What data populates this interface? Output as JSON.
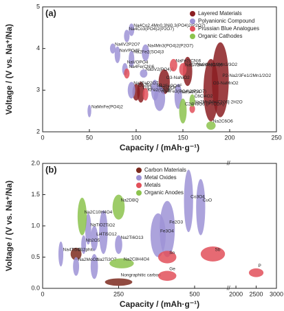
{
  "chart_data": [
    {
      "type": "scatter",
      "panel": "(a)",
      "xlabel": "Capacity / (mAh·g⁻¹)",
      "ylabel": "Voltage / (V vs. Na⁺/Na)",
      "xlim": [
        0,
        250
      ],
      "ylim": [
        2,
        5
      ],
      "xticks": [
        0,
        50,
        100,
        150,
        200,
        250
      ],
      "yticks": [
        2,
        3,
        4,
        5
      ],
      "legend": "upper right",
      "series": [
        {
          "name": "Layered Materials",
          "color": "#8b1e22",
          "labels": [
            "P2-Na2/3Fe1/2Mn1/2O2",
            "O3-NaMnO2",
            "O3-NaNiO2",
            "P2-Na2/3Ni1/3Mn2/3O2",
            "O3-Na3Ni2SbO6",
            "O3-NaCrO2"
          ],
          "x": [
            190,
            180,
            130,
            155,
            105,
            100
          ],
          "y": [
            3.25,
            3.0,
            3.2,
            3.45,
            2.95,
            2.95
          ],
          "dx": [
            9,
            8,
            6,
            5,
            4,
            4
          ],
          "dy": [
            0.9,
            0.75,
            0.3,
            0.35,
            0.25,
            0.2
          ]
        },
        {
          "name": "Polyanionic Compound",
          "color": "#9d93d6",
          "labels": [
            "Na4Co2.4Mn0.3Ni0.3(PO4)2(P2O7)",
            "Na4Co3(PO4)2(P2O7)",
            "Na4V2P2O7",
            "Na4Mn3(PO4)2(P2O7)",
            "NaVPO4F",
            "Na2Fe2(SO4)3",
            "Na3V2(PO4)3",
            "NaVOPO4",
            "Na2FePO4F",
            "Na2FeP2O7",
            "NaFePO4",
            "Na4Fe3(PO4)2(P2O7)",
            "NaMnFe(PO4)2"
          ],
          "x": [
            95,
            90,
            75,
            110,
            80,
            95,
            108,
            88,
            120,
            95,
            145,
            125,
            50
          ],
          "y": [
            4.45,
            4.3,
            4.0,
            3.9,
            3.85,
            3.75,
            3.4,
            3.5,
            3.0,
            3.0,
            2.85,
            2.8,
            2.5
          ],
          "dx": [
            3,
            3,
            3,
            4,
            3,
            3,
            4,
            3,
            4,
            4,
            4,
            6,
            2
          ],
          "dy": [
            0.15,
            0.15,
            0.12,
            0.2,
            0.2,
            0.2,
            0.1,
            0.15,
            0.25,
            0.2,
            0.3,
            0.3,
            0.15
          ]
        },
        {
          "name": "Prussian Blue Analogues",
          "color": "#e2505a",
          "labels": [
            "NaFe2(CN)6",
            "Na4Fe(CN)6",
            "Na1.72MnFe(CN)6",
            "Na2Mn[Mn(CN)6]·2H2O",
            "KFe2(CN)6"
          ],
          "x": [
            140,
            90,
            150,
            160,
            110
          ],
          "y": [
            3.6,
            3.4,
            3.5,
            2.55,
            2.9
          ],
          "dx": [
            4,
            3,
            4,
            3,
            3
          ],
          "dy": [
            0.15,
            0.12,
            0.15,
            0.1,
            0.15
          ]
        },
        {
          "name": "Organic Cathodes",
          "color": "#8cc34d",
          "labels": [
            "C6Cl4O2",
            "C24H8O6 (PTCDA)",
            "Na2C6O6"
          ],
          "x": [
            160,
            150,
            180
          ],
          "y": [
            2.75,
            2.5,
            2.15
          ],
          "dx": [
            3,
            4,
            5
          ],
          "dy": [
            0.15,
            0.3,
            0.1
          ]
        }
      ]
    },
    {
      "type": "scatter",
      "panel": "(b)",
      "xlabel": "Capacity / (mAh·g⁻¹)",
      "ylabel": "Voltage / (V vs. Na⁺/Na)",
      "xlim": [
        0,
        3000
      ],
      "ylim": [
        0,
        2
      ],
      "x_break": [
        600,
        1900
      ],
      "xticks": [
        0,
        250,
        500,
        2000,
        2500,
        3000
      ],
      "yticks": [
        {
          "value": 0,
          "label": "0.0"
        },
        {
          "value": 0.5,
          "label": "0.5"
        },
        {
          "value": 1,
          "label": "1.0"
        },
        {
          "value": 1.5,
          "label": "1.5"
        },
        {
          "value": 2,
          "label": "2.0"
        }
      ],
      "legend": "upper center",
      "series": [
        {
          "name": "Carbon Materials",
          "color": "#7c2a1f",
          "labels": [
            "Graphite",
            "Nongraphitic carbon"
          ],
          "x": [
            110,
            250
          ],
          "y": [
            0.55,
            0.1
          ],
          "dx": [
            18,
            45
          ],
          "dy": [
            0.1,
            0.06
          ]
        },
        {
          "name": "Metal Oxides",
          "color": "#9d93d6",
          "labels": [
            "Na4Ti5O12",
            "Na2MoO2",
            "Li4Ti5O12",
            "Na2Ti3O7",
            "NaTiO2",
            "TiO2",
            "Nb2O5",
            "Na2Ti6O13",
            "Fe3O4",
            "Fe2O3",
            "Co3O4",
            "CuO"
          ],
          "x": [
            60,
            110,
            170,
            170,
            150,
            200,
            135,
            250,
            380,
            410,
            480,
            520
          ],
          "y": [
            0.55,
            0.35,
            0.8,
            0.35,
            0.95,
            0.9,
            0.7,
            0.7,
            0.85,
            0.95,
            1.4,
            1.3
          ],
          "dx": [
            8,
            10,
            12,
            12,
            10,
            14,
            8,
            12,
            25,
            25,
            15,
            15
          ],
          "dy": [
            0.2,
            0.15,
            0.2,
            0.2,
            0.25,
            0.35,
            0.15,
            0.15,
            0.35,
            0.45,
            0.5,
            0.45
          ]
        },
        {
          "name": "Metals",
          "color": "#e2505a",
          "labels": [
            "Sn",
            "Ge",
            "Sb",
            "P"
          ],
          "x": [
            410,
            410,
            560,
            2500
          ],
          "y": [
            0.5,
            0.2,
            0.55,
            0.25
          ],
          "dx": [
            30,
            30,
            40,
            180
          ],
          "dy": [
            0.1,
            0.08,
            0.12,
            0.07
          ]
        },
        {
          "name": "Organic Anodes",
          "color": "#8cc34d",
          "labels": [
            "Na2C10H4O4",
            "Na2DBQ",
            "Na2C8H4O4"
          ],
          "x": [
            130,
            250,
            260
          ],
          "y": [
            1.15,
            1.3,
            0.4
          ],
          "dx": [
            15,
            20,
            40
          ],
          "dy": [
            0.3,
            0.2,
            0.08
          ]
        }
      ]
    }
  ]
}
